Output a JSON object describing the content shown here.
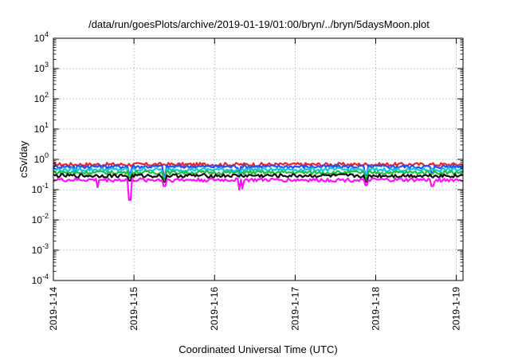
{
  "chart_data": {
    "type": "line",
    "title": "/data/run/goesPlots/archive/2019-01-19/01:00/bryn/../bryn/5daysMoon.plot",
    "xlabel": "Coordinated Universal Time (UTC)",
    "ylabel": "cSv/day",
    "yscale": "log",
    "ylim": [
      0.0001,
      10000
    ],
    "xlim": [
      "2019-01-14",
      "2019-01-19 02:00"
    ],
    "y_ticks": [
      {
        "base": "10",
        "exp": "4"
      },
      {
        "base": "10",
        "exp": "3"
      },
      {
        "base": "10",
        "exp": "2"
      },
      {
        "base": "10",
        "exp": "1"
      },
      {
        "base": "10",
        "exp": "0"
      },
      {
        "base": "10",
        "exp": "-1"
      },
      {
        "base": "10",
        "exp": "-2"
      },
      {
        "base": "10",
        "exp": "-3"
      },
      {
        "base": "10",
        "exp": "-4"
      }
    ],
    "x_ticks": [
      "2019-1-14",
      "2019-1-15",
      "2019-1-16",
      "2019-1-17",
      "2019-1-18",
      "2019-1-19"
    ],
    "grid": true,
    "colors": {
      "red": "#e8262a",
      "blue": "#2050ff",
      "cyan": "#10c8e0",
      "green": "#20c040",
      "black": "#111111",
      "magenta": "#ff10ff"
    },
    "series": [
      {
        "color": "#e8262a",
        "base": 0.68,
        "dips": []
      },
      {
        "color": "#2050ff",
        "base": 0.58,
        "dips": [
          [
            0.28,
            0.35
          ],
          [
            0.95,
            0.35
          ],
          [
            1.38,
            0.3
          ],
          [
            2.3,
            0.33
          ],
          [
            3.88,
            0.3
          ],
          [
            4.7,
            0.35
          ]
        ]
      },
      {
        "color": "#10c8e0",
        "base": 0.46,
        "dips": [
          [
            0.95,
            0.3
          ],
          [
            1.38,
            0.25
          ],
          [
            2.3,
            0.25
          ],
          [
            3.88,
            0.25
          ]
        ]
      },
      {
        "color": "#20c040",
        "base": 0.37,
        "dips": [
          [
            0.95,
            0.25
          ],
          [
            1.38,
            0.22
          ],
          [
            3.88,
            0.22
          ]
        ]
      },
      {
        "color": "#111111",
        "base": 0.29,
        "dips": [
          [
            0.95,
            0.2
          ],
          [
            1.38,
            0.18
          ],
          [
            3.88,
            0.18
          ]
        ]
      },
      {
        "color": "#ff10ff",
        "base": 0.21,
        "dips": [
          [
            0.55,
            0.12
          ],
          [
            0.95,
            0.045
          ],
          [
            1.38,
            0.13
          ],
          [
            2.3,
            0.1
          ],
          [
            2.35,
            0.11
          ],
          [
            3.88,
            0.14
          ],
          [
            4.7,
            0.13
          ]
        ]
      }
    ]
  }
}
